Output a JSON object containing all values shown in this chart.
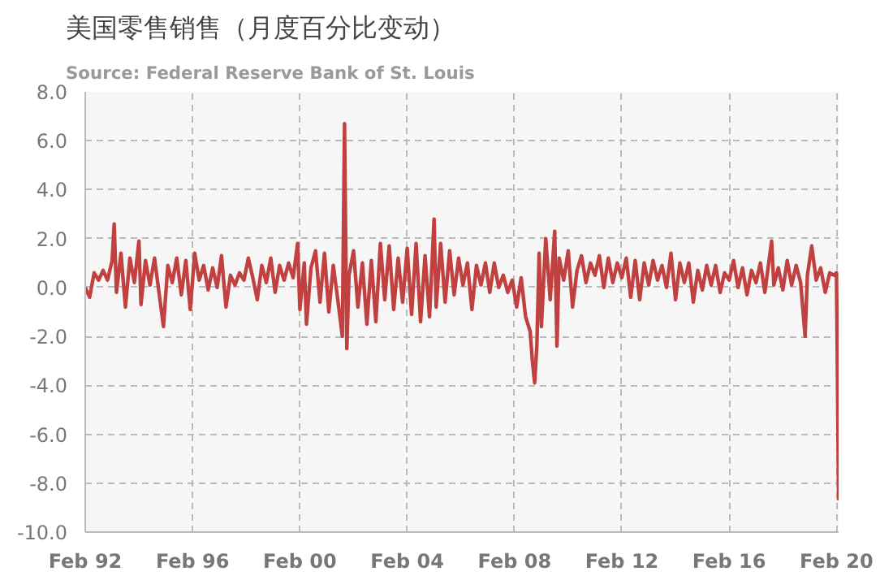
{
  "chart_data": {
    "type": "line",
    "title": "美国零售销售（月度百分比变动）",
    "subtitle": "Source: Federal Reserve Bank of St. Louis",
    "x": [
      "1992-02",
      "1992-04",
      "1992-06",
      "1992-08",
      "1992-10",
      "1992-12",
      "1993-02",
      "1993-03",
      "1993-04",
      "1993-06",
      "1993-08",
      "1993-10",
      "1993-12",
      "1994-02",
      "1994-03",
      "1994-05",
      "1994-07",
      "1994-09",
      "1994-11",
      "1995-01",
      "1995-03",
      "1995-05",
      "1995-07",
      "1995-09",
      "1995-11",
      "1996-01",
      "1996-03",
      "1996-05",
      "1996-07",
      "1996-09",
      "1996-11",
      "1997-01",
      "1997-03",
      "1997-05",
      "1997-07",
      "1997-09",
      "1997-11",
      "1998-01",
      "1998-03",
      "1998-05",
      "1998-07",
      "1998-09",
      "1998-11",
      "1999-01",
      "1999-03",
      "1999-05",
      "1999-07",
      "1999-09",
      "1999-11",
      "2000-01",
      "2000-02",
      "2000-04",
      "2000-05",
      "2000-07",
      "2000-09",
      "2000-11",
      "2001-01",
      "2001-03",
      "2001-05",
      "2001-07",
      "2001-09",
      "2001-10",
      "2001-11",
      "2001-12",
      "2002-02",
      "2002-04",
      "2002-06",
      "2002-08",
      "2002-10",
      "2002-12",
      "2003-02",
      "2003-04",
      "2003-06",
      "2003-08",
      "2003-10",
      "2003-12",
      "2004-02",
      "2004-04",
      "2004-06",
      "2004-08",
      "2004-10",
      "2004-12",
      "2005-02",
      "2005-03",
      "2005-05",
      "2005-07",
      "2005-09",
      "2005-11",
      "2006-01",
      "2006-03",
      "2006-05",
      "2006-07",
      "2006-09",
      "2006-11",
      "2007-01",
      "2007-03",
      "2007-05",
      "2007-07",
      "2007-09",
      "2007-11",
      "2008-01",
      "2008-03",
      "2008-05",
      "2008-07",
      "2008-09",
      "2008-10",
      "2008-11",
      "2008-12",
      "2009-01",
      "2009-02",
      "2009-04",
      "2009-06",
      "2009-08",
      "2009-09",
      "2009-10",
      "2009-12",
      "2010-02",
      "2010-04",
      "2010-06",
      "2010-08",
      "2010-10",
      "2010-12",
      "2011-02",
      "2011-04",
      "2011-06",
      "2011-08",
      "2011-10",
      "2011-12",
      "2012-02",
      "2012-04",
      "2012-06",
      "2012-08",
      "2012-10",
      "2012-12",
      "2013-02",
      "2013-04",
      "2013-06",
      "2013-08",
      "2013-10",
      "2013-12",
      "2014-02",
      "2014-04",
      "2014-06",
      "2014-08",
      "2014-10",
      "2014-12",
      "2015-02",
      "2015-04",
      "2015-06",
      "2015-08",
      "2015-10",
      "2015-12",
      "2016-02",
      "2016-04",
      "2016-06",
      "2016-08",
      "2016-10",
      "2016-12",
      "2017-02",
      "2017-04",
      "2017-06",
      "2017-09",
      "2017-10",
      "2017-12",
      "2018-02",
      "2018-04",
      "2018-06",
      "2018-08",
      "2018-10",
      "2018-12",
      "2019-01",
      "2019-03",
      "2019-05",
      "2019-07",
      "2019-09",
      "2019-11",
      "2020-01",
      "2020-02",
      "2020-03"
    ],
    "series": [
      {
        "color": "#c0413f",
        "values": [
          0.0,
          -0.4,
          0.6,
          0.3,
          0.7,
          0.3,
          1.1,
          2.6,
          -0.2,
          1.4,
          -0.8,
          1.2,
          0.2,
          1.9,
          -0.7,
          1.1,
          0.1,
          1.2,
          -0.2,
          -1.6,
          0.9,
          0.2,
          1.2,
          -0.3,
          1.1,
          -0.9,
          1.4,
          0.3,
          0.9,
          -0.1,
          0.8,
          0.0,
          1.3,
          -0.8,
          0.5,
          0.1,
          0.6,
          0.3,
          1.2,
          0.4,
          -0.5,
          0.9,
          0.2,
          1.2,
          -0.2,
          0.9,
          0.3,
          1.0,
          0.4,
          1.8,
          -0.9,
          1.0,
          -1.5,
          0.8,
          1.5,
          -0.6,
          1.4,
          -1.0,
          0.9,
          -0.5,
          -2.0,
          6.7,
          -2.5,
          0.5,
          1.5,
          -0.8,
          1.0,
          -1.5,
          1.1,
          -1.4,
          1.8,
          -0.5,
          1.7,
          -0.9,
          1.2,
          -0.6,
          1.6,
          -1.1,
          1.8,
          -1.4,
          1.3,
          -1.2,
          2.8,
          -0.8,
          1.8,
          -0.6,
          1.5,
          -0.3,
          1.2,
          0.1,
          1.0,
          -0.9,
          0.9,
          0.1,
          1.0,
          -0.2,
          1.0,
          0.0,
          0.5,
          -0.2,
          0.3,
          -0.8,
          0.4,
          -1.2,
          -1.8,
          -3.0,
          -3.9,
          -2.4,
          1.4,
          -1.6,
          2.0,
          -0.5,
          2.3,
          -2.4,
          1.2,
          0.3,
          1.5,
          -0.8,
          0.7,
          1.3,
          0.2,
          1.0,
          0.5,
          1.3,
          0.0,
          1.2,
          0.2,
          1.0,
          0.4,
          1.2,
          -0.4,
          1.1,
          -0.5,
          1.0,
          0.1,
          1.1,
          0.3,
          0.9,
          0.0,
          1.4,
          -0.5,
          1.0,
          0.2,
          1.0,
          -0.6,
          0.7,
          -0.1,
          0.9,
          0.1,
          0.9,
          -0.2,
          0.6,
          0.3,
          1.1,
          0.0,
          0.8,
          -0.3,
          0.7,
          0.2,
          1.0,
          -0.2,
          1.9,
          0.1,
          0.8,
          -0.1,
          1.1,
          0.1,
          0.9,
          0.2,
          -2.0,
          0.5,
          1.7,
          0.3,
          0.8,
          -0.2,
          0.6,
          0.5,
          0.6,
          -8.7
        ]
      }
    ],
    "xlim": [
      "1992-02",
      "2020-03"
    ],
    "xticks": [
      {
        "value": "1992-02",
        "label": "Feb 92"
      },
      {
        "value": "1996-02",
        "label": "Feb 96"
      },
      {
        "value": "2000-02",
        "label": "Feb 00"
      },
      {
        "value": "2004-02",
        "label": "Feb 04"
      },
      {
        "value": "2008-02",
        "label": "Feb 08"
      },
      {
        "value": "2012-02",
        "label": "Feb 12"
      },
      {
        "value": "2016-02",
        "label": "Feb 16"
      },
      {
        "value": "2020-02",
        "label": "Feb 20"
      }
    ],
    "ylim": [
      -10,
      8
    ],
    "yticks": [
      {
        "value": -10,
        "label": "-10.0"
      },
      {
        "value": -8,
        "label": "-8.0"
      },
      {
        "value": -6,
        "label": "-6.0"
      },
      {
        "value": -4,
        "label": "-4.0"
      },
      {
        "value": -2,
        "label": "-2.0"
      },
      {
        "value": 0,
        "label": "0.0"
      },
      {
        "value": 2,
        "label": "2.0"
      },
      {
        "value": 4,
        "label": "4.0"
      },
      {
        "value": 6,
        "label": "6.0"
      },
      {
        "value": 8,
        "label": "8.0"
      }
    ],
    "grid": true,
    "marker": "none",
    "line_style": "solid"
  }
}
